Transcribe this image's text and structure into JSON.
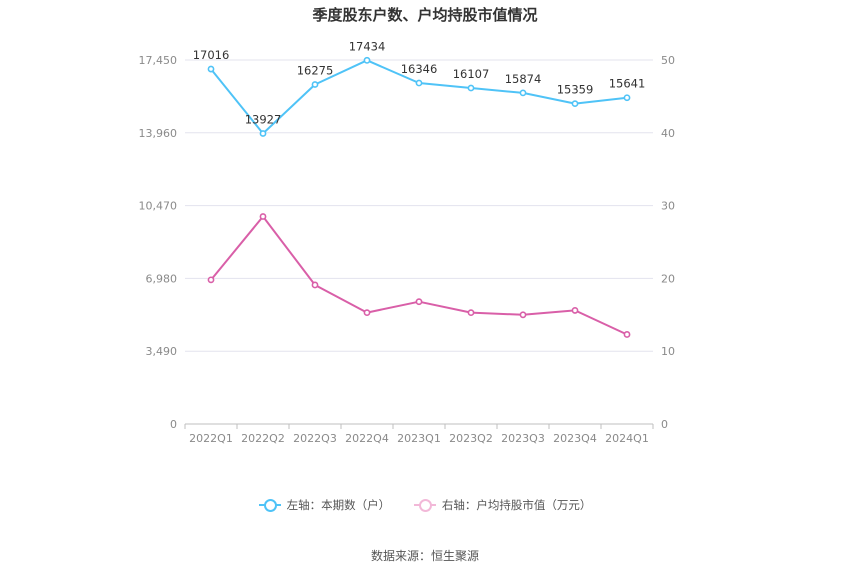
{
  "chart_data": {
    "type": "line",
    "title": "季度股东户数、户均持股市值情况",
    "categories": [
      "2022Q1",
      "2022Q2",
      "2022Q3",
      "2022Q4",
      "2023Q1",
      "2023Q2",
      "2023Q3",
      "2023Q4",
      "2024Q1"
    ],
    "left_axis": {
      "ticks": [
        "0",
        "3,490",
        "6,980",
        "10,470",
        "13,960",
        "17,450"
      ],
      "ylim": [
        0,
        17450
      ]
    },
    "right_axis": {
      "ticks": [
        "0",
        "10",
        "20",
        "30",
        "40",
        "50"
      ],
      "ylim": [
        0,
        50
      ]
    },
    "series": [
      {
        "name": "左轴：本期数（户）",
        "axis": "left",
        "color": "#4fc3f7",
        "values": [
          17016,
          13927,
          16275,
          17434,
          16346,
          16107,
          15874,
          15359,
          15641
        ],
        "data_labels": [
          "17016",
          "13927",
          "16275",
          "17434",
          "16346",
          "16107",
          "15874",
          "15359",
          "15641"
        ]
      },
      {
        "name": "右轴：户均持股市值（万元）",
        "axis": "right",
        "color": "#d95fa8",
        "values": [
          19.8,
          28.5,
          19.1,
          15.3,
          16.8,
          15.3,
          15.0,
          15.6,
          12.3
        ]
      }
    ],
    "grid": true,
    "legend_position": "bottom"
  },
  "source": "数据来源：恒生聚源"
}
